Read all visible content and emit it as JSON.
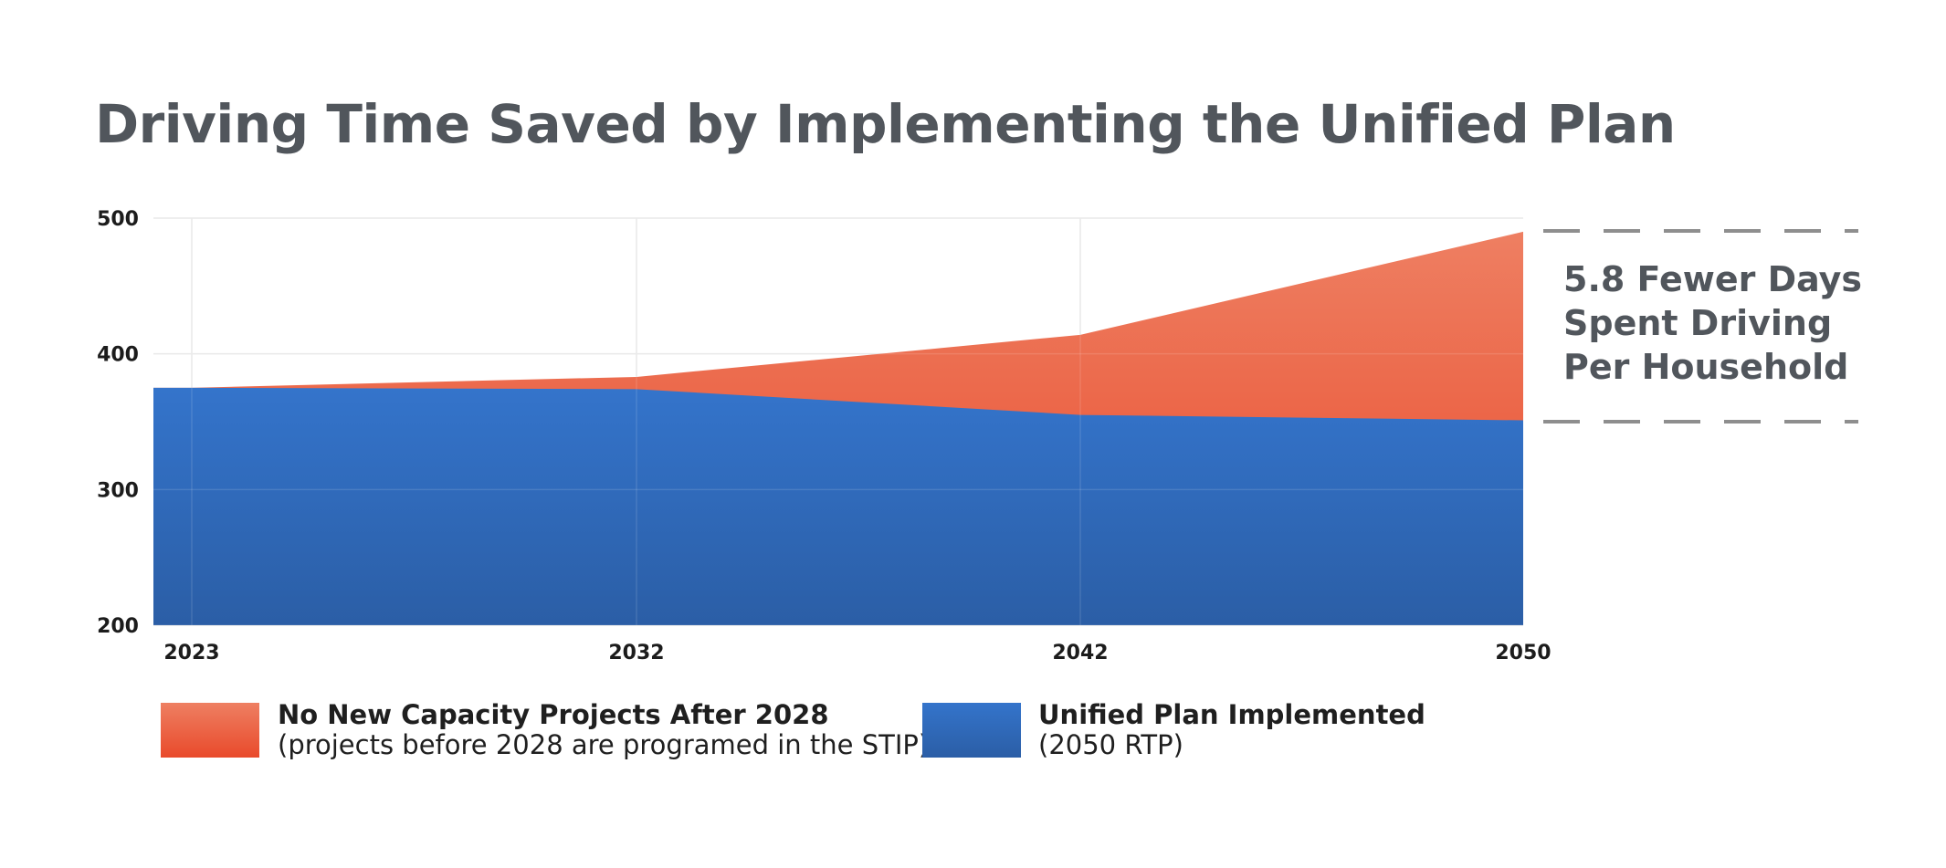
{
  "chart_data": {
    "type": "area",
    "title": "Driving Time Saved by Implementing the Unified Plan",
    "x": [
      "2023",
      "2032",
      "2042",
      "2050"
    ],
    "ylim": [
      200,
      500
    ],
    "yticks": [
      200,
      300,
      400,
      500
    ],
    "grid": true,
    "series": [
      {
        "name": "No New Capacity Projects After 2028",
        "note": "(projects before 2028 are programed in the STIP)",
        "values": [
          375,
          383,
          414,
          490
        ],
        "color_top": "#ee7f62",
        "color_bottom": "#e94a2b"
      },
      {
        "name": "Unified Plan Implemented",
        "note": "(2050 RTP)",
        "values": [
          375,
          374,
          355,
          351
        ],
        "color_top": "#3474cb",
        "color_bottom": "#2b5ea6"
      }
    ],
    "annotation": {
      "lines": [
        "5.8 Fewer Days",
        "Spent Driving",
        "Per Household"
      ]
    },
    "legend_position": "bottom-left"
  }
}
